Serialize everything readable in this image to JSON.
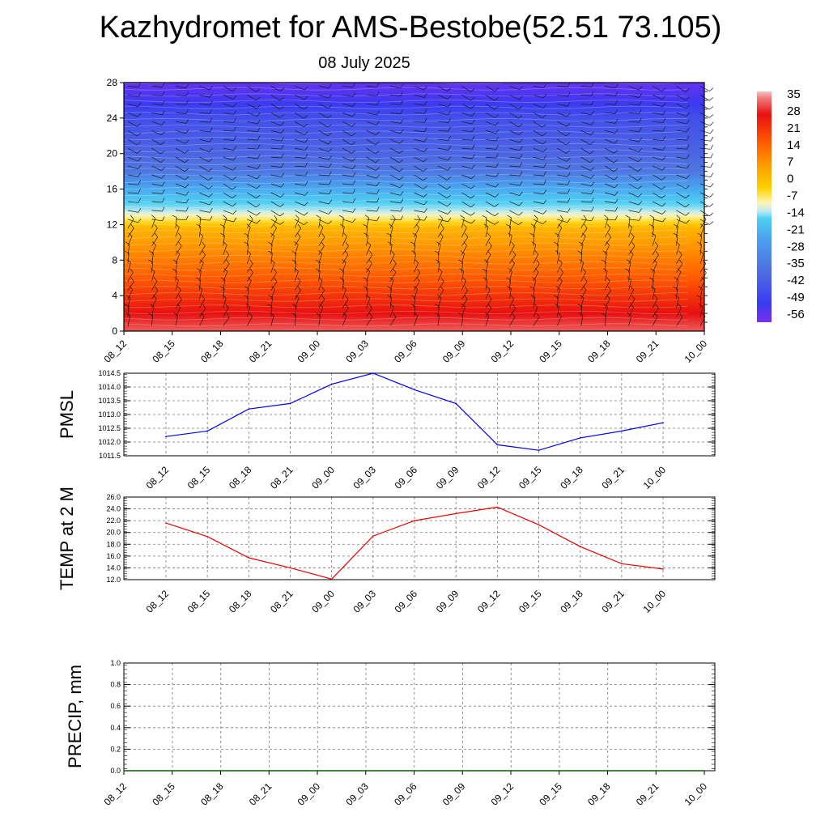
{
  "title": "Kazhydromet for AMS-Bestobe(52.51 73.105)",
  "subtitle": "08 July 2025",
  "chart_data": [
    {
      "type": "heatmap",
      "name": "cross-section",
      "title": "",
      "xlabel": "",
      "ylabel": "",
      "x_ticks": [
        "08_12",
        "08_15",
        "08_18",
        "08_21",
        "09_00",
        "09_03",
        "09_06",
        "09_09",
        "09_12",
        "09_15",
        "09_18",
        "09_21",
        "10_00"
      ],
      "y_ticks": [
        0,
        4,
        8,
        12,
        16,
        20,
        24,
        28
      ],
      "ylim": [
        0,
        28
      ],
      "overlay": "wind barbs",
      "colorbar": {
        "labels": [
          "35",
          "28",
          "21",
          "14",
          "7",
          "0",
          "-7",
          "-14",
          "-21",
          "-28",
          "-35",
          "-42",
          "-49",
          "-56"
        ],
        "range": [
          -60,
          38
        ]
      },
      "profile_levels": [
        0,
        4,
        8,
        11.5,
        12.5,
        14,
        16,
        18,
        20,
        22,
        24,
        26,
        28
      ],
      "profile_values": [
        30,
        20,
        10,
        1,
        -7,
        -18,
        -28,
        -40,
        -44,
        -46,
        -48,
        -53,
        -57
      ]
    },
    {
      "type": "line",
      "name": "pmsl",
      "ylabel": "PMSL",
      "x_ticks": [
        "08_12",
        "08_15",
        "08_18",
        "08_21",
        "09_00",
        "09_03",
        "09_06",
        "09_09",
        "09_12",
        "09_15",
        "09_18",
        "09_21",
        "10_00"
      ],
      "y_ticks": [
        "1011.5",
        "1012.0",
        "1012.5",
        "1013.0",
        "1013.5",
        "1014.0",
        "1014.5"
      ],
      "ylim": [
        1011.5,
        1014.5
      ],
      "grid": true,
      "color": "#0000ee",
      "values": [
        1012.2,
        1012.4,
        1013.2,
        1013.4,
        1014.1,
        1014.5,
        1013.9,
        1013.4,
        1011.9,
        1011.7,
        1012.15,
        1012.4,
        1012.7
      ]
    },
    {
      "type": "line",
      "name": "temp",
      "ylabel": "TEMP at 2 M",
      "x_ticks": [
        "08_12",
        "08_15",
        "08_18",
        "08_21",
        "09_00",
        "09_03",
        "09_06",
        "09_09",
        "09_12",
        "09_15",
        "09_18",
        "09_21",
        "10_00"
      ],
      "y_ticks": [
        "12.0",
        "14.0",
        "16.0",
        "18.0",
        "20.0",
        "22.0",
        "24.0",
        "26.0"
      ],
      "ylim": [
        12,
        26
      ],
      "grid": true,
      "color": "#ee0000",
      "values": [
        21.6,
        19.3,
        15.7,
        14.0,
        12.1,
        19.4,
        22.0,
        23.2,
        24.3,
        21.3,
        17.6,
        14.7,
        13.8
      ]
    },
    {
      "type": "line",
      "name": "precip",
      "ylabel": "PRECIP, mm",
      "x_ticks": [
        "08_12",
        "08_15",
        "08_18",
        "08_21",
        "09_00",
        "09_03",
        "09_06",
        "09_09",
        "09_12",
        "09_15",
        "09_18",
        "09_21",
        "10_00"
      ],
      "y_ticks": [
        "0.0",
        "0.2",
        "0.4",
        "0.6",
        "0.8",
        "1.0"
      ],
      "ylim": [
        0,
        1
      ],
      "grid": true,
      "color": "#006400",
      "values": [
        0,
        0,
        0,
        0,
        0,
        0,
        0,
        0,
        0,
        0,
        0,
        0,
        0
      ]
    }
  ]
}
